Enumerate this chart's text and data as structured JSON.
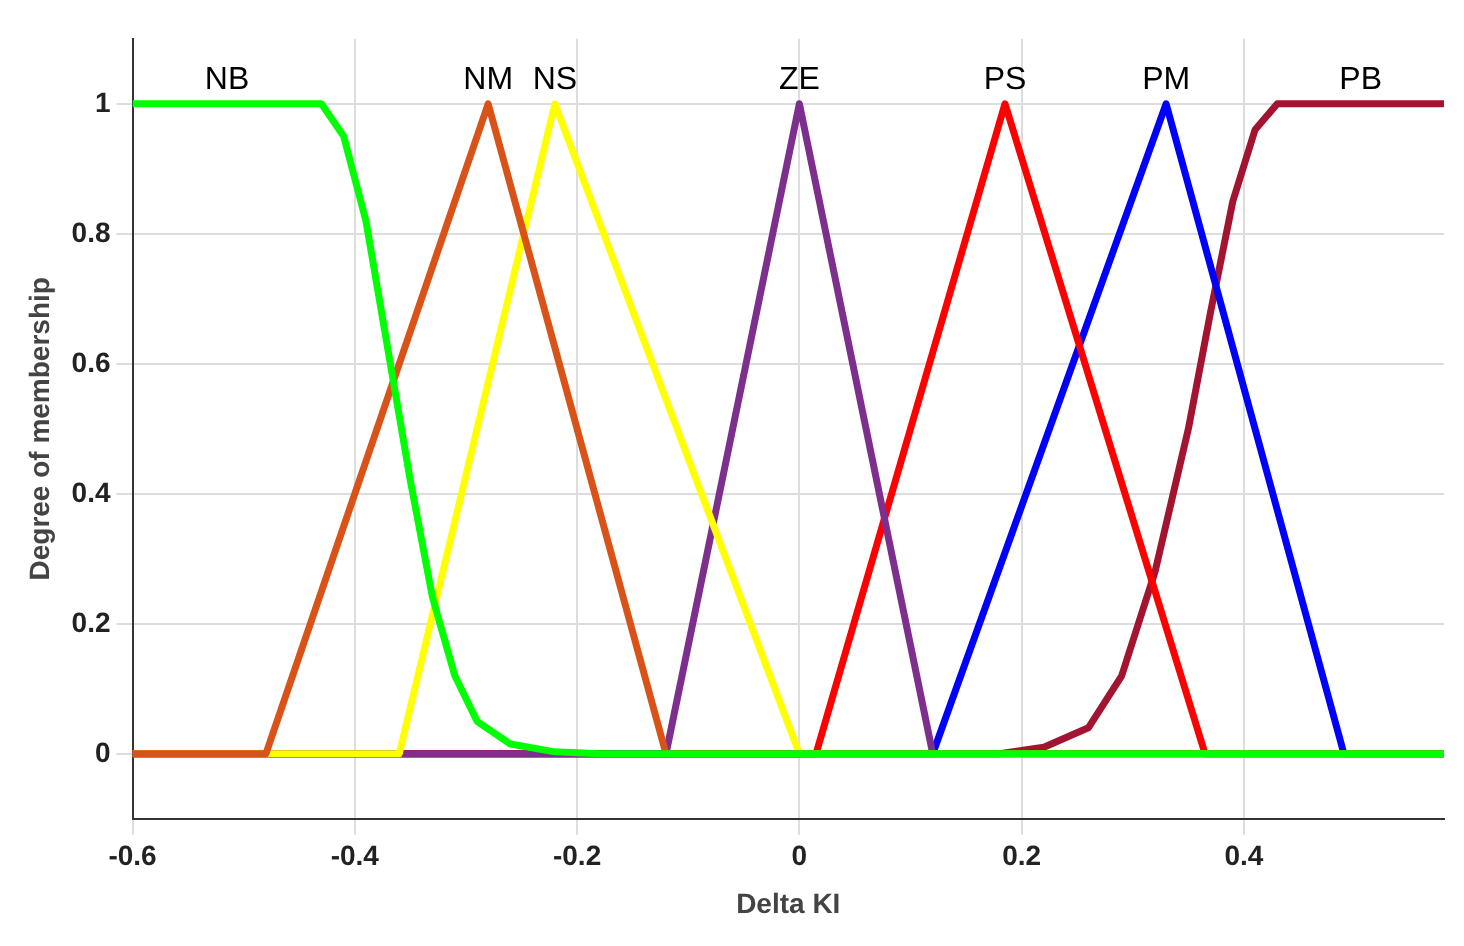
{
  "chart_data": {
    "type": "line",
    "xlabel": "Delta KI",
    "ylabel": "Degree of membership",
    "xlim": [
      -0.6,
      0.58
    ],
    "ylim": [
      -0.1,
      1.1
    ],
    "xticks": [
      -0.6,
      -0.4,
      -0.2,
      0,
      0.2,
      0.4
    ],
    "yticks": [
      0,
      0.2,
      0.4,
      0.6,
      0.8,
      1
    ],
    "grid": true,
    "legend": false,
    "marker": "none",
    "line_style": "solid",
    "series": [
      {
        "name": "NB",
        "color": "#00ff00",
        "x": [
          -0.6,
          -0.43,
          -0.41,
          -0.39,
          -0.37,
          -0.35,
          -0.33,
          -0.31,
          -0.29,
          -0.26,
          -0.22,
          -0.18,
          0.58
        ],
        "values": [
          1,
          1,
          0.95,
          0.82,
          0.62,
          0.42,
          0.24,
          0.12,
          0.05,
          0.015,
          0.003,
          0,
          0
        ]
      },
      {
        "name": "NM",
        "color": "#d95319",
        "x": [
          -0.6,
          -0.48,
          -0.28,
          -0.12,
          0.58
        ],
        "values": [
          0,
          0,
          1,
          0,
          0
        ]
      },
      {
        "name": "NS",
        "color": "#ffff00",
        "x": [
          -0.6,
          -0.36,
          -0.22,
          0,
          0.58
        ],
        "values": [
          0,
          0,
          1,
          0,
          0
        ]
      },
      {
        "name": "ZE",
        "color": "#7e2f8e",
        "x": [
          -0.6,
          -0.12,
          0,
          0.12,
          0.58
        ],
        "values": [
          0,
          0,
          1,
          0,
          0
        ]
      },
      {
        "name": "PS",
        "color": "#ff0000",
        "x": [
          -0.6,
          0.015,
          0.185,
          0.365,
          0.58
        ],
        "values": [
          0,
          0,
          1,
          0,
          0
        ]
      },
      {
        "name": "PM",
        "color": "#0000ff",
        "x": [
          -0.6,
          0.12,
          0.33,
          0.49,
          0.58
        ],
        "values": [
          0,
          0,
          1,
          0,
          0
        ]
      },
      {
        "name": "PB",
        "color": "#a2142f",
        "x": [
          -0.6,
          0.18,
          0.22,
          0.26,
          0.29,
          0.32,
          0.35,
          0.37,
          0.39,
          0.41,
          0.43,
          0.58
        ],
        "values": [
          0,
          0,
          0.01,
          0.04,
          0.12,
          0.28,
          0.5,
          0.68,
          0.85,
          0.96,
          1,
          1
        ]
      }
    ]
  }
}
